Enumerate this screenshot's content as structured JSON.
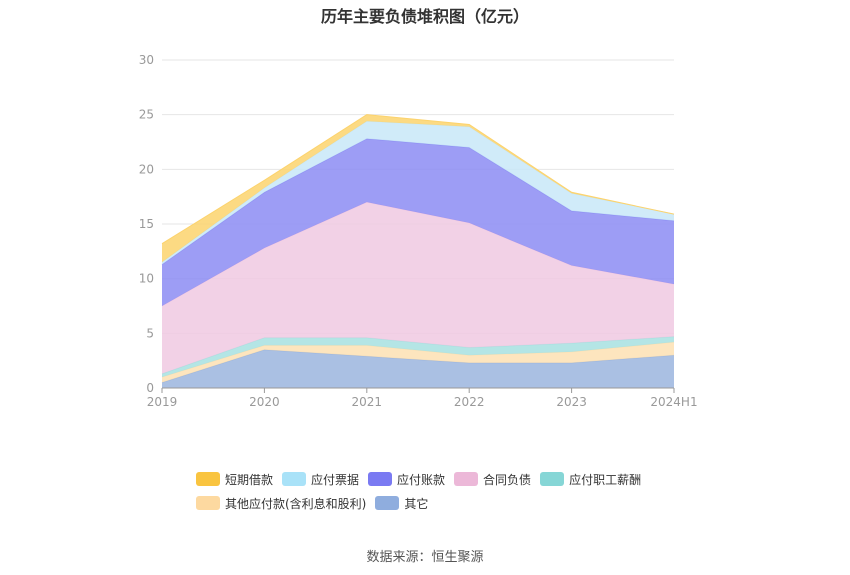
{
  "title": "历年主要负债堆积图（亿元）",
  "source": "数据来源：恒生聚源",
  "chart_data": {
    "type": "area",
    "stacked": true,
    "categories": [
      "2019",
      "2020",
      "2021",
      "2022",
      "2023",
      "2024H1"
    ],
    "ylim": [
      0,
      30
    ],
    "yticks": [
      "0",
      "5",
      "10",
      "15",
      "20",
      "25",
      "30"
    ],
    "grid": true,
    "legend_position": "bottom",
    "series": [
      {
        "name": "其它",
        "color": "#9bb5de",
        "values": [
          0.5,
          3.5,
          2.9,
          2.3,
          2.3,
          3.0
        ]
      },
      {
        "name": "其他应付款(含利息和股利)",
        "color": "#fde1b3",
        "values": [
          0.5,
          0.4,
          1.0,
          0.7,
          1.0,
          1.2
        ]
      },
      {
        "name": "应付职工薪酬",
        "color": "#a7e0e0",
        "values": [
          0.3,
          0.7,
          0.7,
          0.7,
          0.8,
          0.5
        ]
      },
      {
        "name": "合同负债",
        "color": "#f0c9e2",
        "values": [
          6.2,
          8.2,
          12.4,
          11.4,
          7.1,
          4.8
        ]
      },
      {
        "name": "应付账款",
        "color": "#8c8cf3",
        "values": [
          3.8,
          5.1,
          5.8,
          6.9,
          5.0,
          5.8
        ]
      },
      {
        "name": "应付票据",
        "color": "#c8e8f8",
        "values": [
          0.2,
          0.4,
          1.6,
          1.9,
          1.6,
          0.6
        ]
      },
      {
        "name": "短期借款",
        "color": "#fcd36d",
        "values": [
          1.7,
          0.7,
          0.6,
          0.2,
          0.1,
          0.0
        ]
      }
    ],
    "legend": [
      {
        "name": "短期借款",
        "color": "#f9c440"
      },
      {
        "name": "应付票据",
        "color": "#a9e2f8"
      },
      {
        "name": "应付账款",
        "color": "#7a7af2"
      },
      {
        "name": "合同负债",
        "color": "#ecb8d8"
      },
      {
        "name": "应付职工薪酬",
        "color": "#86d6d6"
      },
      {
        "name": "其他应付款(含利息和股利)",
        "color": "#fdd9a0"
      },
      {
        "name": "其它",
        "color": "#8fadde"
      }
    ]
  }
}
